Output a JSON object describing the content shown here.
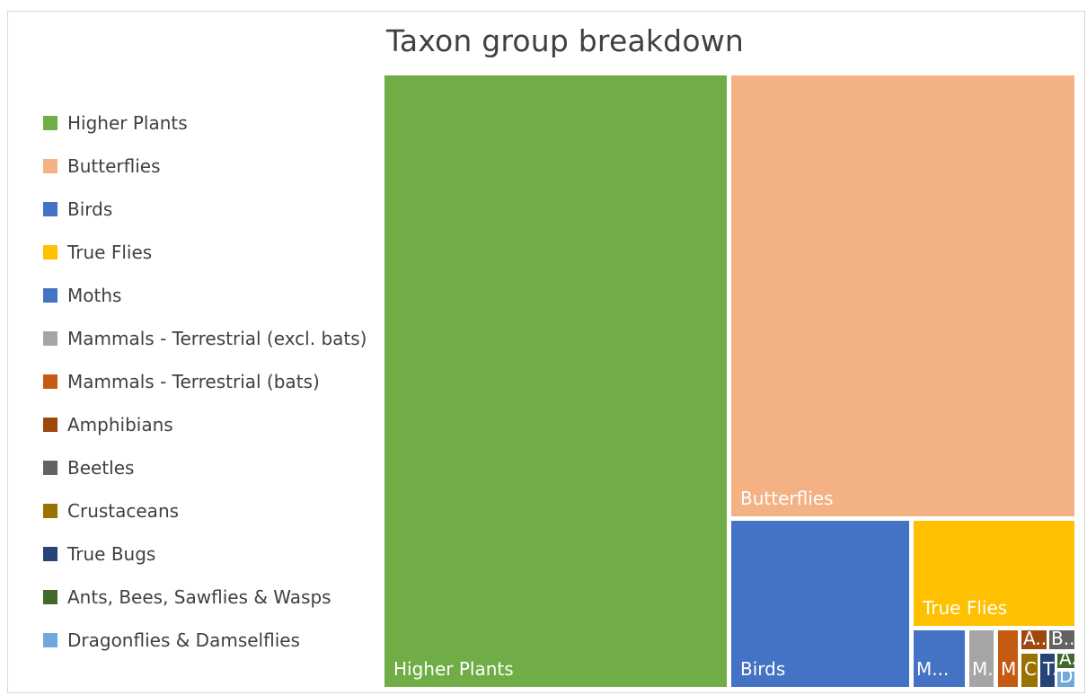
{
  "chart_data": {
    "type": "treemap",
    "title": "Taxon group breakdown",
    "legend_position": "left",
    "series": [
      {
        "name": "Higher Plants",
        "value": 100,
        "color": "#70AD47",
        "tile_label": "Higher Plants"
      },
      {
        "name": "Butterflies",
        "value": 65,
        "color": "#F4B183",
        "tile_label": "Butterflies"
      },
      {
        "name": "Birds",
        "value": 15,
        "color": "#4472C4",
        "tile_label": "Birds"
      },
      {
        "name": "True Flies",
        "value": 14.5,
        "color": "#FFC000",
        "tile_label": "True Flies"
      },
      {
        "name": "Moths",
        "value": 2.2,
        "color": "#4472C4",
        "tile_label": "M..."
      },
      {
        "name": "Mammals - Terrestrial (excl. bats)",
        "value": 1.1,
        "color": "#A5A5A5",
        "tile_label": "M..."
      },
      {
        "name": "Mammals - Terrestrial (bats)",
        "value": 0.9,
        "color": "#C55A11",
        "tile_label": "M..."
      },
      {
        "name": "Amphibians",
        "value": 0.45,
        "color": "#9E480E",
        "tile_label": "A..."
      },
      {
        "name": "Beetles",
        "value": 0.4,
        "color": "#636363",
        "tile_label": "B..."
      },
      {
        "name": "Crustaceans",
        "value": 0.35,
        "color": "#997300",
        "tile_label": "C..."
      },
      {
        "name": "True Bugs",
        "value": 0.3,
        "color": "#264478",
        "tile_label": "T..."
      },
      {
        "name": "Ants, Bees, Sawflies & Wasps",
        "value": 0.15,
        "color": "#43682B",
        "tile_label": "A..."
      },
      {
        "name": "Dragonflies & Damselflies",
        "value": 0.1,
        "color": "#6FA8DC",
        "tile_label": "D..."
      }
    ]
  }
}
